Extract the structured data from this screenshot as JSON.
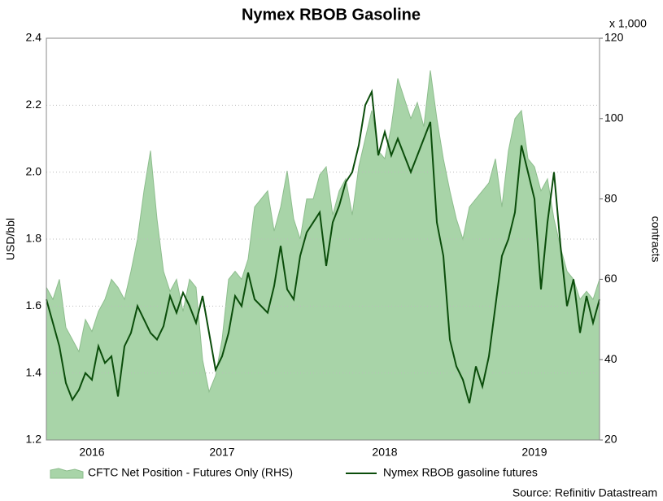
{
  "chart_data": {
    "type": "line",
    "title": "Nymex RBOB Gasoline",
    "y_label": "USD/bbl",
    "y2_label": "contracts",
    "y2_unit": "x 1,000",
    "source": "Source: Refinitiv Datastream",
    "categories": [
      null,
      null,
      null,
      null,
      null,
      null,
      null,
      "2016",
      null,
      null,
      null,
      null,
      null,
      null,
      null,
      null,
      null,
      null,
      null,
      null,
      null,
      null,
      null,
      null,
      null,
      null,
      null,
      "2017",
      null,
      null,
      null,
      null,
      null,
      null,
      null,
      null,
      null,
      null,
      null,
      null,
      null,
      null,
      null,
      null,
      null,
      null,
      null,
      null,
      null,
      null,
      null,
      null,
      "2018",
      null,
      null,
      null,
      null,
      null,
      null,
      null,
      null,
      null,
      null,
      null,
      null,
      null,
      null,
      null,
      null,
      null,
      null,
      null,
      null,
      null,
      null,
      "2019",
      null,
      null,
      null,
      null,
      null,
      null,
      null,
      null,
      null,
      null
    ],
    "series": [
      {
        "name": "CFTC Net Position - Futures Only (RHS)",
        "type": "area",
        "axis": "y2",
        "color": "#a8d4a8",
        "values": [
          58,
          55,
          60,
          48,
          45,
          42,
          50,
          47,
          52,
          55,
          60,
          58,
          55,
          62,
          70,
          82,
          92,
          75,
          62,
          57,
          60,
          52,
          60,
          58,
          40,
          32,
          36,
          45,
          60,
          62,
          60,
          65,
          78,
          80,
          82,
          72,
          78,
          87,
          75,
          70,
          80,
          80,
          86,
          88,
          76,
          82,
          85,
          76,
          88,
          95,
          102,
          92,
          90,
          98,
          110,
          105,
          100,
          104,
          98,
          112,
          100,
          90,
          82,
          75,
          70,
          78,
          80,
          82,
          84,
          90,
          78,
          92,
          100,
          102,
          90,
          88,
          82,
          85,
          75,
          68,
          62,
          60,
          55,
          57,
          55,
          60
        ]
      },
      {
        "name": "Nymex RBOB gasoline futures",
        "type": "line",
        "color": "#0b4d0b",
        "values": [
          1.62,
          1.55,
          1.48,
          1.37,
          1.32,
          1.35,
          1.4,
          1.38,
          1.48,
          1.43,
          1.45,
          1.33,
          1.48,
          1.52,
          1.6,
          1.56,
          1.52,
          1.5,
          1.54,
          1.63,
          1.58,
          1.64,
          1.6,
          1.55,
          1.63,
          1.52,
          1.41,
          1.45,
          1.52,
          1.63,
          1.6,
          1.7,
          1.62,
          1.6,
          1.58,
          1.66,
          1.78,
          1.65,
          1.62,
          1.75,
          1.82,
          1.85,
          1.88,
          1.72,
          1.85,
          1.9,
          1.97,
          2.0,
          2.08,
          2.2,
          2.24,
          2.05,
          2.12,
          2.05,
          2.1,
          2.05,
          2.0,
          2.05,
          2.1,
          2.15,
          1.85,
          1.75,
          1.5,
          1.42,
          1.38,
          1.31,
          1.42,
          1.36,
          1.45,
          1.6,
          1.75,
          1.8,
          1.88,
          2.08,
          2.0,
          1.92,
          1.65,
          1.85,
          2.0,
          1.78,
          1.6,
          1.68,
          1.52,
          1.63,
          1.55,
          1.62
        ]
      }
    ],
    "ylim": [
      1.2,
      2.4
    ],
    "yticks": [
      1.2,
      1.4,
      1.6,
      1.8,
      {
        "value": 2,
        "label": "2.0"
      },
      2.2,
      2.4
    ],
    "y2lim": [
      20,
      120
    ],
    "y2ticks": [
      20,
      40,
      60,
      80,
      100,
      120
    ],
    "grid": true,
    "legend": "bottom"
  }
}
